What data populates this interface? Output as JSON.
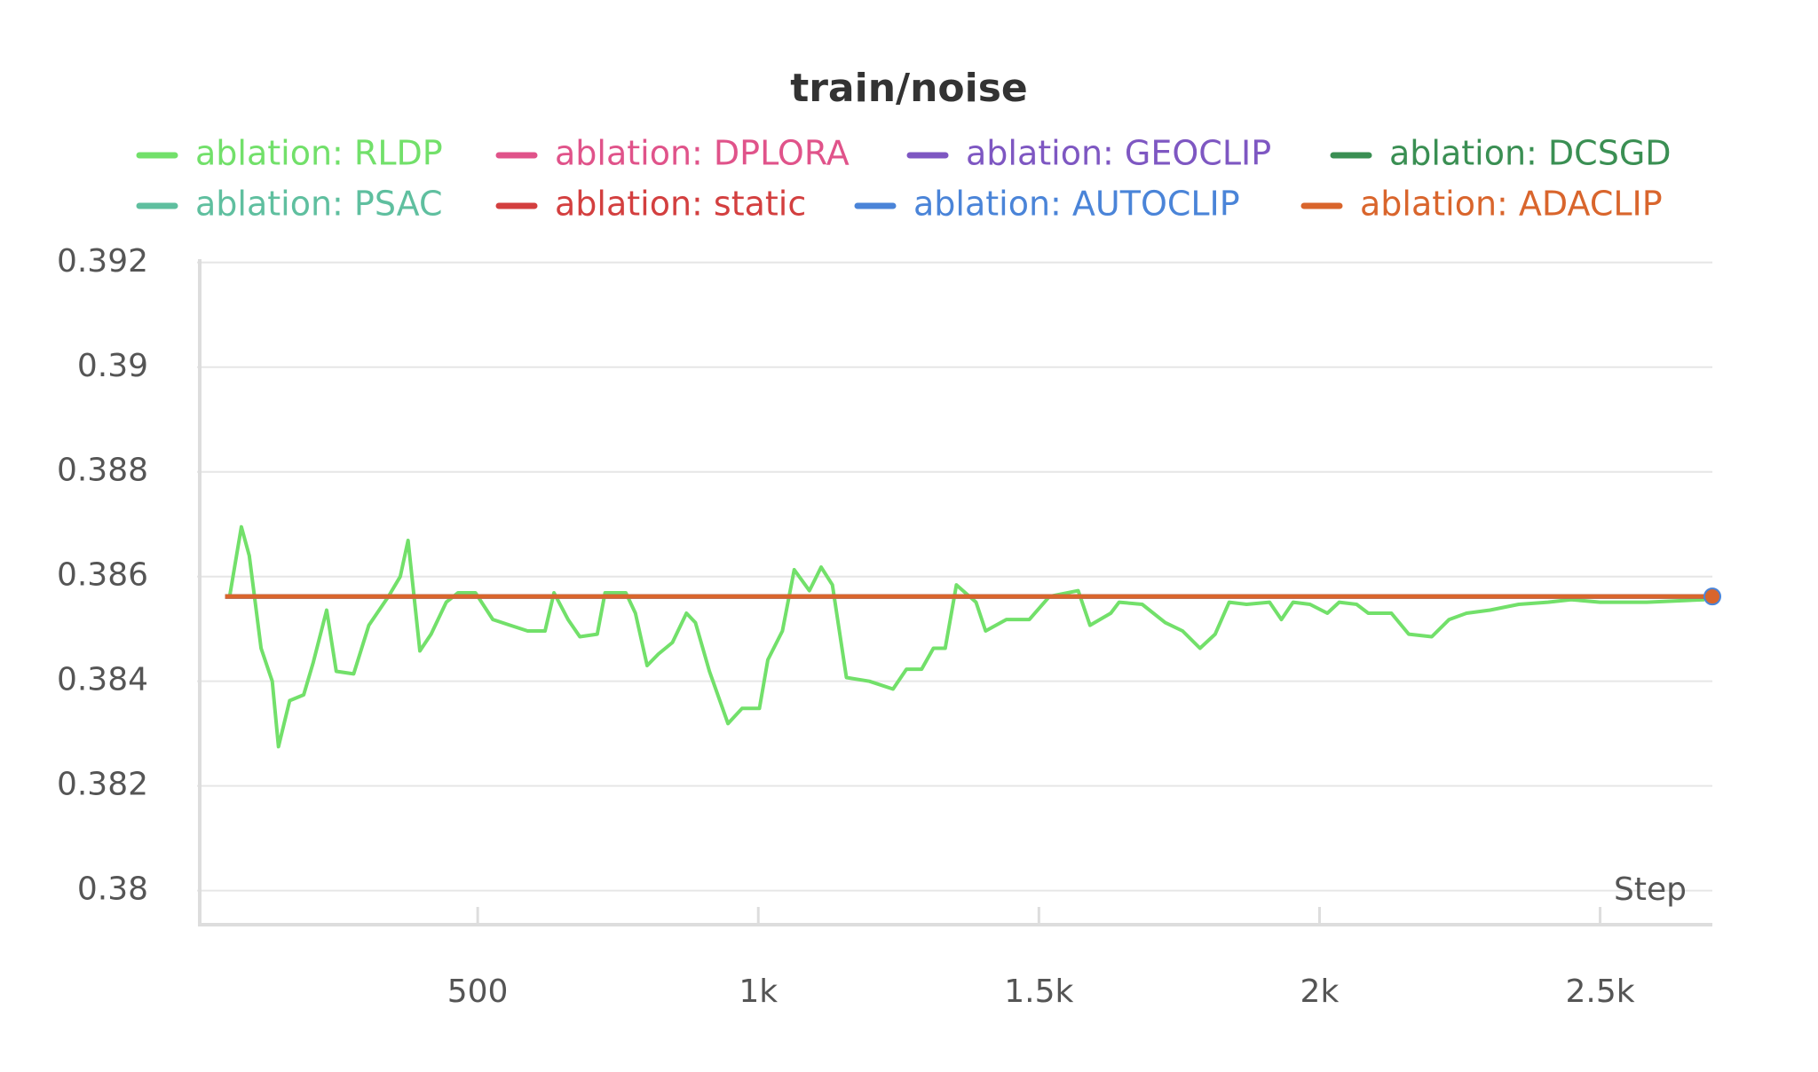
{
  "chart_data": {
    "type": "line",
    "title": "train/noise",
    "x_label": "Step",
    "xlim": [
      0,
      2700
    ],
    "ylim": [
      0.3794,
      0.3922
    ],
    "xticks": [
      500,
      {
        "value": 1000,
        "label": "1k"
      },
      {
        "value": 1500,
        "label": "1.5k"
      },
      {
        "value": 2000,
        "label": "2k"
      },
      {
        "value": 2500,
        "label": "2.5k"
      }
    ],
    "yticks": [
      0.38,
      0.382,
      0.384,
      0.386,
      0.388,
      0.39,
      0.392
    ],
    "grid": true,
    "series": [
      {
        "name": "ablation: RLDP",
        "color": "#72e06a",
        "x": [
          58,
          79,
          93,
          114,
          134,
          145,
          165,
          190,
          207,
          231,
          248,
          279,
          306,
          341,
          362,
          376,
          397,
          417,
          444,
          465,
          496,
          527,
          558,
          589,
          620,
          636,
          661,
          682,
          713,
          727,
          764,
          781,
          802,
          822,
          847,
          872,
          888,
          913,
          946,
          971,
          1002,
          1017,
          1043,
          1064,
          1091,
          1112,
          1132,
          1157,
          1198,
          1240,
          1264,
          1291,
          1312,
          1333,
          1353,
          1388,
          1405,
          1442,
          1483,
          1519,
          1570,
          1591,
          1628,
          1643,
          1684,
          1725,
          1756,
          1787,
          1814,
          1839,
          1870,
          1911,
          1932,
          1953,
          1983,
          2014,
          2035,
          2066,
          2087,
          2128,
          2159,
          2200,
          2231,
          2262,
          2304,
          2355,
          2407,
          2448,
          2500,
          2583,
          2686
        ],
        "values": [
          0.38562,
          0.38695,
          0.3864,
          0.38463,
          0.384,
          0.38275,
          0.38363,
          0.38374,
          0.38436,
          0.38536,
          0.38419,
          0.38414,
          0.38507,
          0.38562,
          0.386,
          0.38669,
          0.38458,
          0.3849,
          0.38551,
          0.38569,
          0.38569,
          0.38518,
          0.38507,
          0.38496,
          0.38496,
          0.38569,
          0.38518,
          0.38485,
          0.3849,
          0.38569,
          0.38569,
          0.3853,
          0.3843,
          0.38452,
          0.38474,
          0.3853,
          0.38512,
          0.38419,
          0.38319,
          0.38348,
          0.38348,
          0.38441,
          0.38496,
          0.38613,
          0.38573,
          0.38618,
          0.38584,
          0.38407,
          0.384,
          0.38385,
          0.38423,
          0.38423,
          0.38463,
          0.38463,
          0.38584,
          0.38551,
          0.38496,
          0.38518,
          0.38518,
          0.38562,
          0.38573,
          0.38507,
          0.3853,
          0.38551,
          0.38547,
          0.38512,
          0.38496,
          0.38463,
          0.3849,
          0.38551,
          0.38547,
          0.38551,
          0.38518,
          0.38551,
          0.38547,
          0.3853,
          0.38551,
          0.38547,
          0.3853,
          0.3853,
          0.3849,
          0.38485,
          0.38518,
          0.3853,
          0.38536,
          0.38547,
          0.38551,
          0.38556,
          0.38551,
          0.38551,
          0.38556
        ]
      },
      {
        "name": "ablation: DPLORA",
        "color": "#e0538a",
        "x": [
          50,
          2700
        ],
        "values": [
          0.38562,
          0.38562
        ]
      },
      {
        "name": "ablation: GEOCLIP",
        "color": "#7e57c2",
        "x": [
          50,
          2700
        ],
        "values": [
          0.38562,
          0.38562
        ]
      },
      {
        "name": "ablation: DCSGD",
        "color": "#3a8f53",
        "x": [
          50,
          2700
        ],
        "values": [
          0.38562,
          0.38562
        ]
      },
      {
        "name": "ablation: PSAC",
        "color": "#5fbf9f",
        "x": [
          50,
          2700
        ],
        "values": [
          0.38562,
          0.38562
        ]
      },
      {
        "name": "ablation: static",
        "color": "#d33f3f",
        "x": [
          50,
          2700
        ],
        "values": [
          0.38562,
          0.38562
        ]
      },
      {
        "name": "ablation: AUTOCLIP",
        "color": "#4a84d8",
        "x": [
          50,
          2700
        ],
        "values": [
          0.38562,
          0.38562
        ]
      },
      {
        "name": "ablation: ADACLIP",
        "color": "#d9652c",
        "x": [
          50,
          2700
        ],
        "values": [
          0.38562,
          0.38562
        ]
      }
    ]
  }
}
